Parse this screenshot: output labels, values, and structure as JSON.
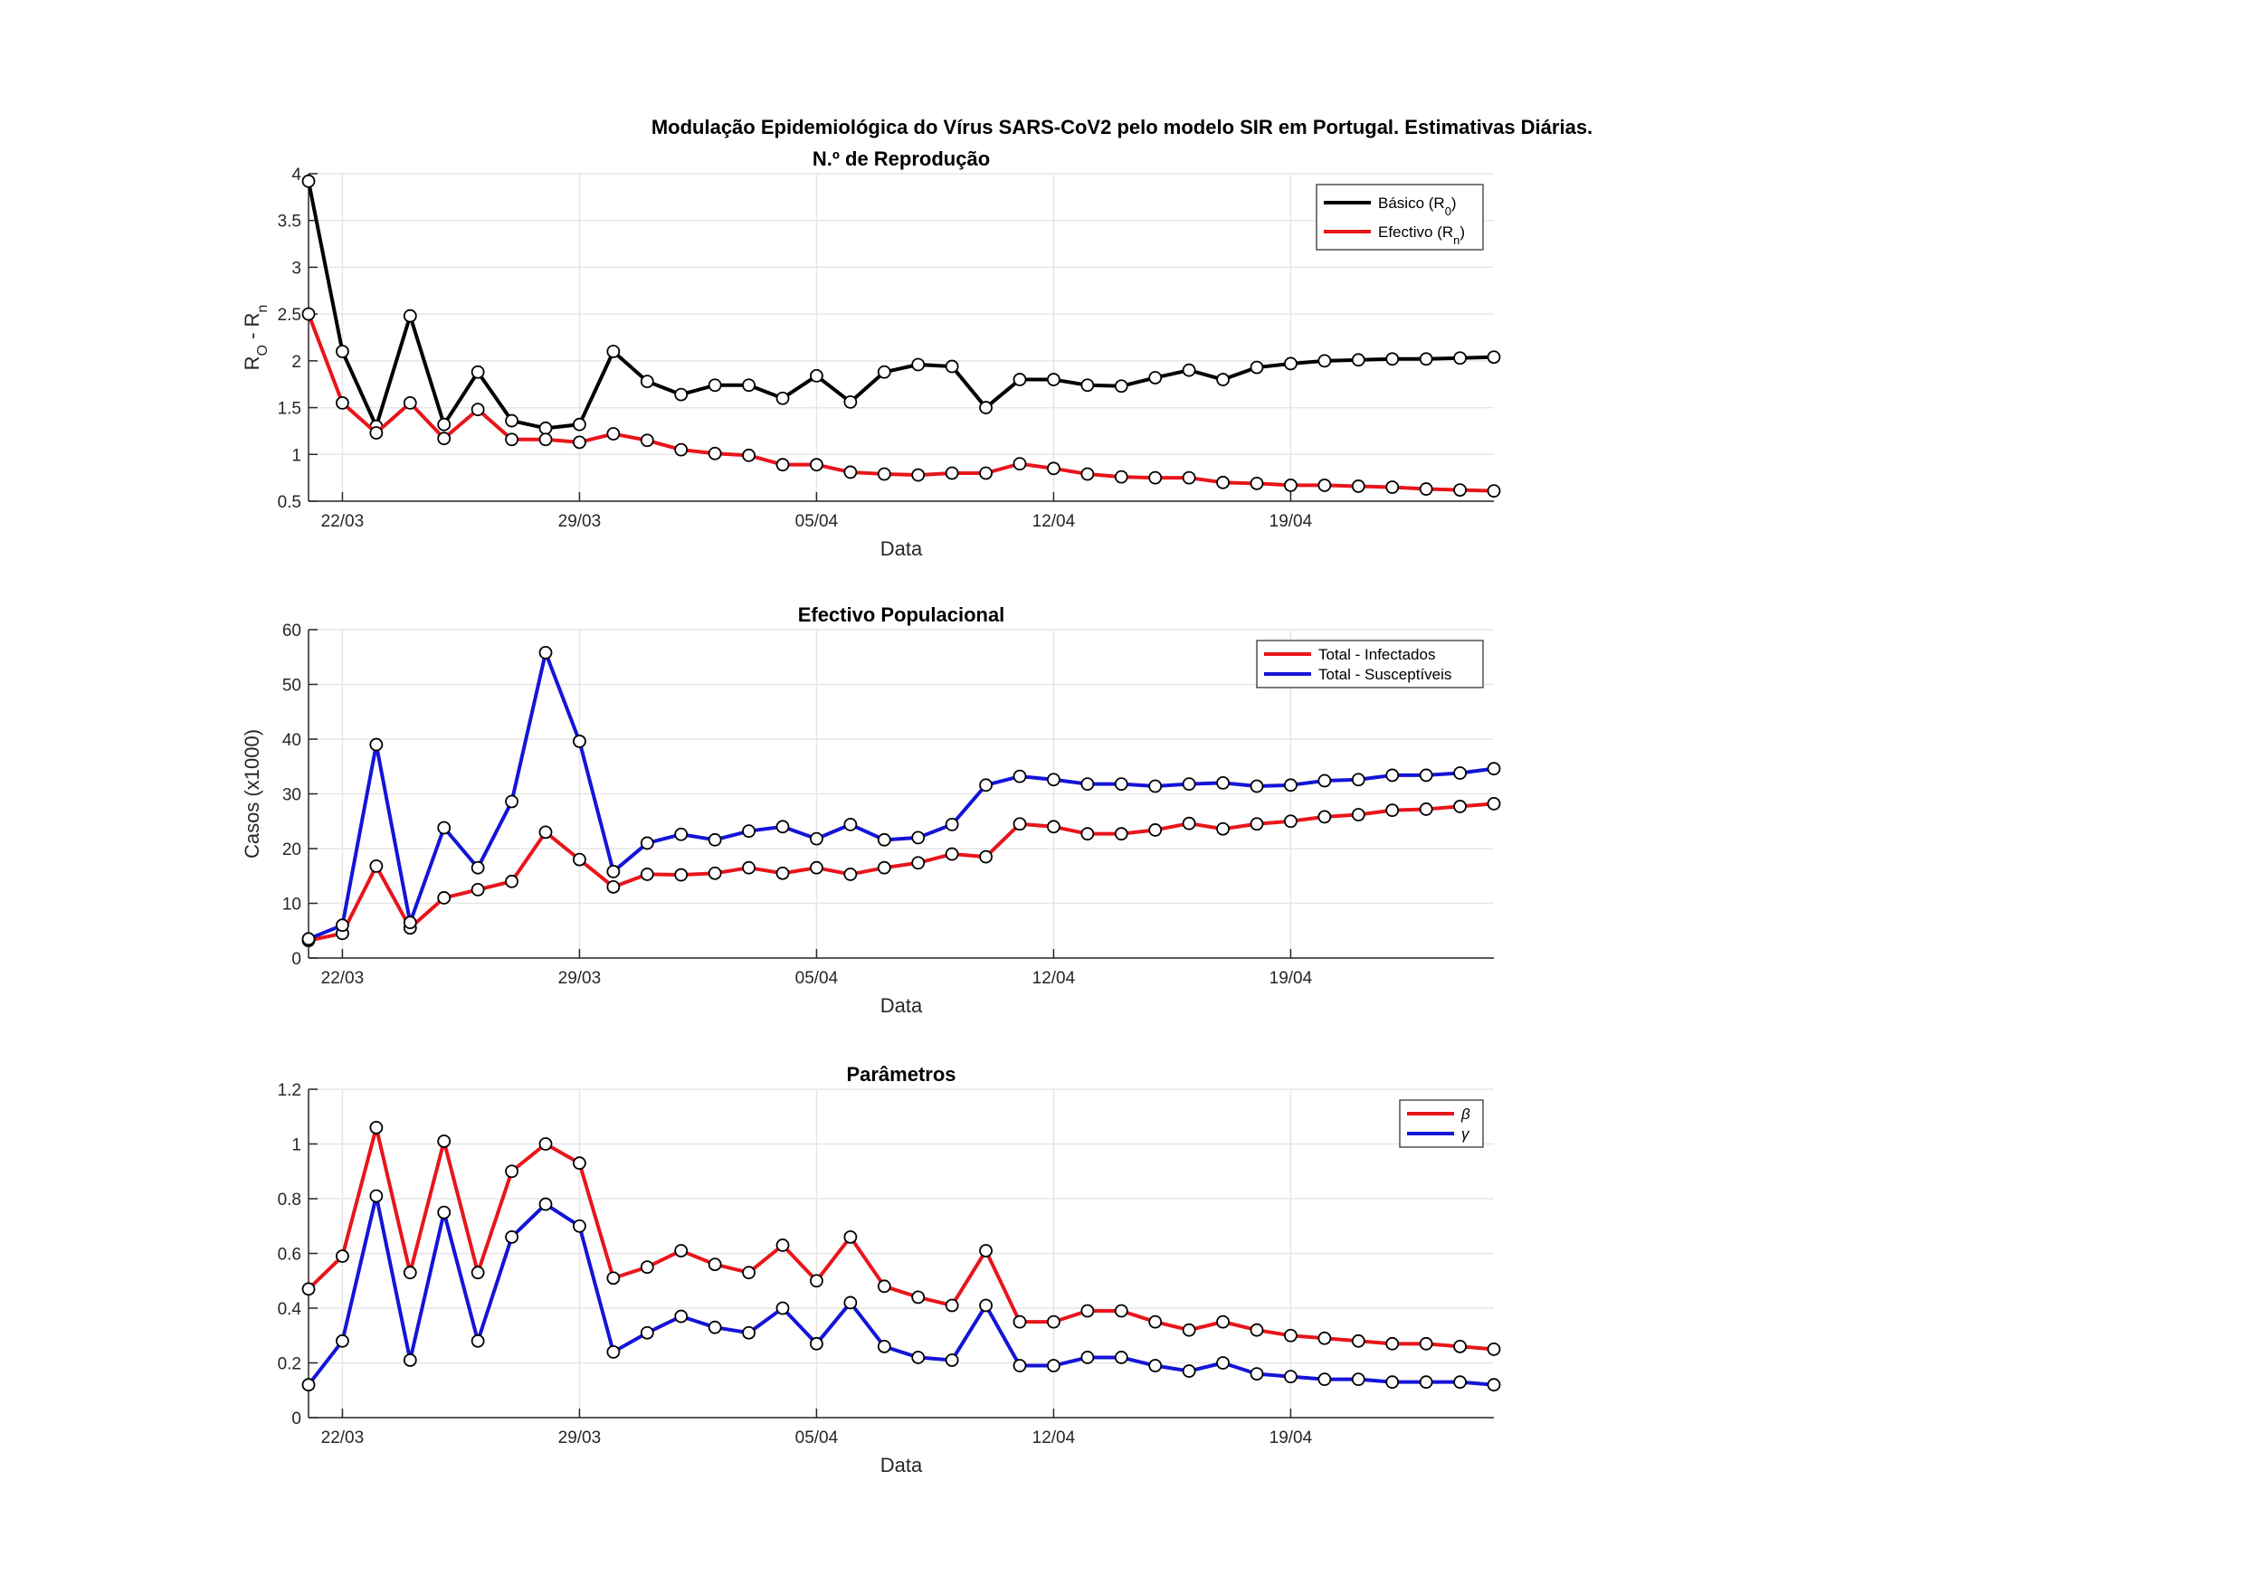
{
  "figure": {
    "title": "Modulação Epidemiológica do Vírus SARS-CoV2 pelo modelo SIR em Portugal. Estimativas Diárias."
  },
  "colors": {
    "black": "#000000",
    "red": "#e8151b",
    "blue": "#1414d8",
    "grid": "#e6e6e6",
    "axis": "#262626"
  },
  "chart_data": [
    {
      "type": "line",
      "title": "N.º de Reprodução",
      "xlabel": "Data",
      "ylabel_parts": [
        "R",
        "O",
        " - R",
        "n"
      ],
      "x_start": "2020-03-21",
      "x_tick_labels": [
        "22/03",
        "29/03",
        "05/04",
        "12/04",
        "19/04"
      ],
      "x_tick_dates": [
        "2020-03-22",
        "2020-03-29",
        "2020-04-05",
        "2020-04-12",
        "2020-04-19"
      ],
      "xlim": [
        "2020-03-21",
        "2020-04-25"
      ],
      "ylim": [
        0.5,
        4
      ],
      "y_ticks": [
        0.5,
        1,
        1.5,
        2,
        2.5,
        3,
        3.5,
        4
      ],
      "y_tick_labels": [
        "0.5",
        "1",
        "1.5",
        "2",
        "2.5",
        "3",
        "3.5",
        "4"
      ],
      "grid": true,
      "legend_position": "top-right",
      "series": [
        {
          "name": "Básico (R",
          "sub": "0",
          "close": ")",
          "color": "#000000",
          "values": [
            3.92,
            2.1,
            1.3,
            2.48,
            1.32,
            1.88,
            1.36,
            1.28,
            1.32,
            2.1,
            1.78,
            1.64,
            1.74,
            1.74,
            1.6,
            1.84,
            1.56,
            1.88,
            1.96,
            1.94,
            1.5,
            1.8,
            1.8,
            1.74,
            1.73,
            1.82,
            1.9,
            1.8,
            1.93,
            1.97,
            2.0,
            2.01,
            2.02,
            2.02,
            2.03,
            2.04
          ]
        },
        {
          "name": "Efectivo (R",
          "sub": "n",
          "close": ")",
          "color": "#e8151b",
          "values": [
            2.5,
            1.55,
            1.23,
            1.55,
            1.17,
            1.48,
            1.16,
            1.16,
            1.13,
            1.22,
            1.15,
            1.05,
            1.01,
            0.99,
            0.89,
            0.89,
            0.81,
            0.79,
            0.78,
            0.8,
            0.8,
            0.9,
            0.85,
            0.79,
            0.76,
            0.75,
            0.75,
            0.7,
            0.69,
            0.67,
            0.67,
            0.66,
            0.65,
            0.63,
            0.62,
            0.61
          ]
        }
      ]
    },
    {
      "type": "line",
      "title": "Efectivo Populacional",
      "xlabel": "Data",
      "ylabel": "Casos (x1000)",
      "x_start": "2020-03-21",
      "x_tick_labels": [
        "22/03",
        "29/03",
        "05/04",
        "12/04",
        "19/04"
      ],
      "x_tick_dates": [
        "2020-03-22",
        "2020-03-29",
        "2020-04-05",
        "2020-04-12",
        "2020-04-19"
      ],
      "xlim": [
        "2020-03-21",
        "2020-04-25"
      ],
      "ylim": [
        0,
        60
      ],
      "y_ticks": [
        0,
        10,
        20,
        30,
        40,
        50,
        60
      ],
      "y_tick_labels": [
        "0",
        "10",
        "20",
        "30",
        "40",
        "50",
        "60"
      ],
      "grid": true,
      "legend_position": "top-right",
      "series": [
        {
          "name": "Total - Infectados",
          "color": "#e8151b",
          "values": [
            3.2,
            4.5,
            16.8,
            5.5,
            11.0,
            12.5,
            14.0,
            23.0,
            18.0,
            13.0,
            15.3,
            15.2,
            15.5,
            16.5,
            15.5,
            16.5,
            15.3,
            16.5,
            17.4,
            19.0,
            18.5,
            24.5,
            24.0,
            22.7,
            22.7,
            23.4,
            24.6,
            23.6,
            24.5,
            25.0,
            25.8,
            26.2,
            27.0,
            27.2,
            27.7,
            28.2
          ]
        },
        {
          "name": "Total - Susceptíveis",
          "color": "#1414d8",
          "values": [
            3.5,
            6.0,
            39.0,
            6.5,
            23.8,
            16.5,
            28.6,
            55.8,
            39.6,
            15.8,
            21.0,
            22.6,
            21.6,
            23.2,
            24.0,
            21.8,
            24.4,
            21.6,
            22.0,
            24.4,
            31.6,
            33.2,
            32.6,
            31.8,
            31.8,
            31.4,
            31.8,
            32.0,
            31.4,
            31.6,
            32.4,
            32.6,
            33.4,
            33.4,
            33.8,
            34.6
          ]
        }
      ]
    },
    {
      "type": "line",
      "title": "Parâmetros",
      "xlabel": "Data",
      "ylabel": "",
      "x_start": "2020-03-21",
      "x_tick_labels": [
        "22/03",
        "29/03",
        "05/04",
        "12/04",
        "19/04"
      ],
      "x_tick_dates": [
        "2020-03-22",
        "2020-03-29",
        "2020-04-05",
        "2020-04-12",
        "2020-04-19"
      ],
      "xlim": [
        "2020-03-21",
        "2020-04-25"
      ],
      "ylim": [
        0,
        1.2
      ],
      "y_ticks": [
        0,
        0.2,
        0.4,
        0.6,
        0.8,
        1,
        1.2
      ],
      "y_tick_labels": [
        "0",
        "0.2",
        "0.4",
        "0.6",
        "0.8",
        "1",
        "1.2"
      ],
      "grid": true,
      "legend_position": "top-right",
      "series": [
        {
          "name": "β",
          "color": "#e8151b",
          "italic": true,
          "values": [
            0.47,
            0.59,
            1.06,
            0.53,
            1.01,
            0.53,
            0.9,
            1.0,
            0.93,
            0.51,
            0.55,
            0.61,
            0.56,
            0.53,
            0.63,
            0.5,
            0.66,
            0.48,
            0.44,
            0.41,
            0.61,
            0.35,
            0.35,
            0.39,
            0.39,
            0.35,
            0.32,
            0.35,
            0.32,
            0.3,
            0.29,
            0.28,
            0.27,
            0.27,
            0.26,
            0.25
          ]
        },
        {
          "name": "γ",
          "color": "#1414d8",
          "italic": true,
          "values": [
            0.12,
            0.28,
            0.81,
            0.21,
            0.75,
            0.28,
            0.66,
            0.78,
            0.7,
            0.24,
            0.31,
            0.37,
            0.33,
            0.31,
            0.4,
            0.27,
            0.42,
            0.26,
            0.22,
            0.21,
            0.41,
            0.19,
            0.19,
            0.22,
            0.22,
            0.19,
            0.17,
            0.2,
            0.16,
            0.15,
            0.14,
            0.14,
            0.13,
            0.13,
            0.13,
            0.12
          ]
        }
      ]
    }
  ]
}
